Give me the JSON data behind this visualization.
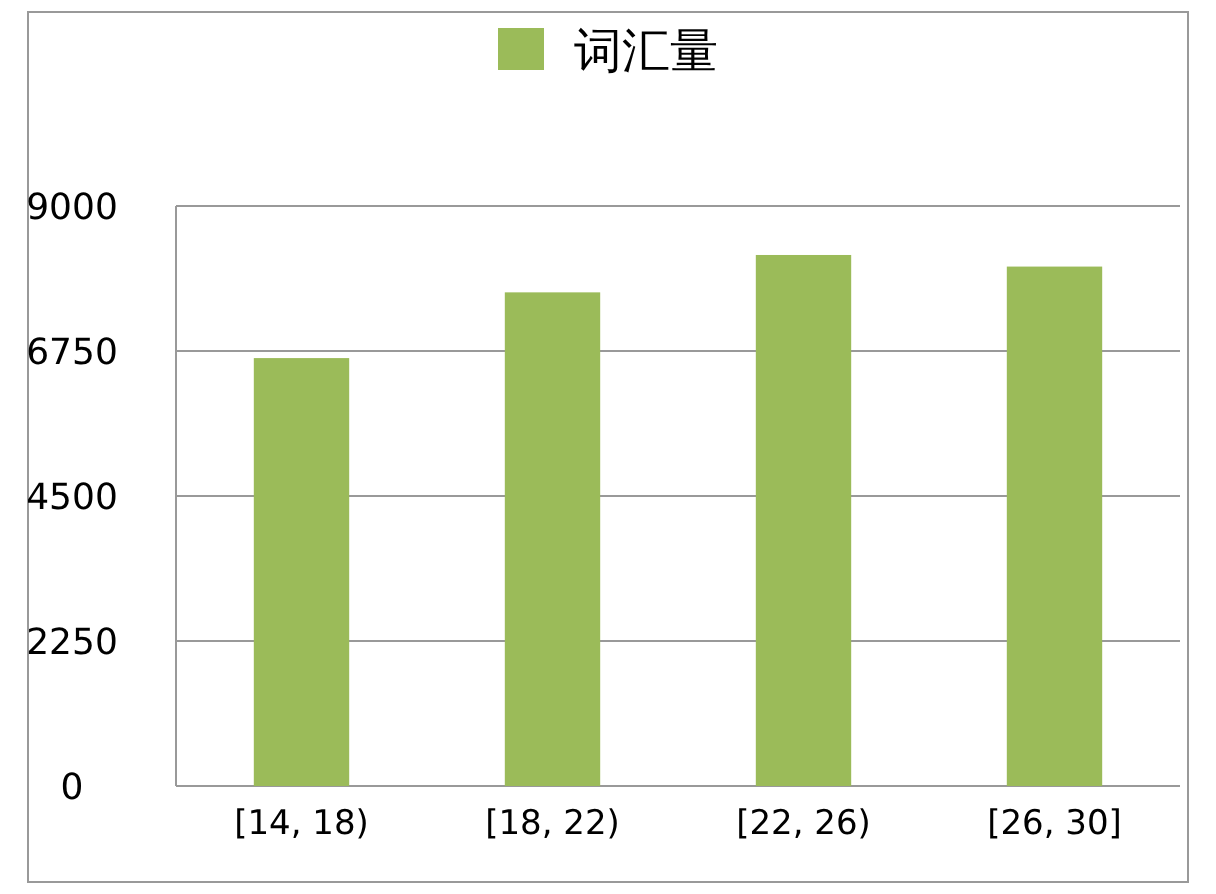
{
  "chart_data": {
    "type": "bar",
    "categories": [
      "[14, 18)",
      "[18, 22)",
      "[22, 26)",
      "[26, 30]"
    ],
    "series": [
      {
        "name": "词汇量",
        "color": "#9bbb59",
        "values": [
          6640,
          7660,
          8240,
          8060
        ]
      }
    ],
    "ylim": [
      0,
      9000
    ],
    "yticks": [
      0,
      2250,
      4500,
      6750,
      9000
    ],
    "grid": "y",
    "legend": "top"
  }
}
